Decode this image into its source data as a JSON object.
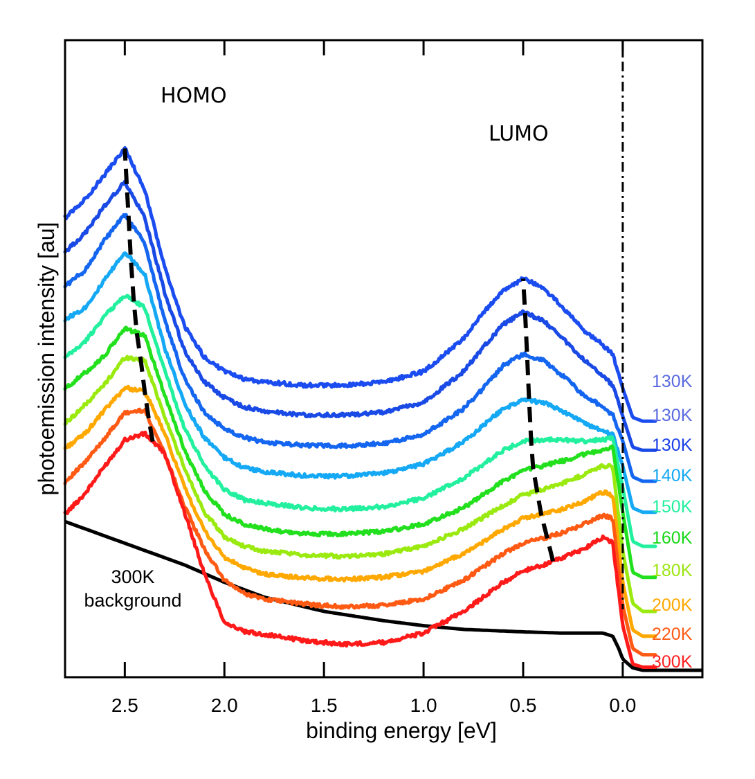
{
  "chart_data": {
    "type": "line",
    "xlabel": "binding energy [eV]",
    "ylabel": "photoemission intensity [au]",
    "x_reversed": true,
    "xlim": [
      2.8,
      -0.4
    ],
    "ylim": [
      0,
      10
    ],
    "x_ticks": [
      2.5,
      2.0,
      1.5,
      1.0,
      0.5,
      0.0
    ],
    "x_tick_labels": [
      "2.5",
      "2.0",
      "1.5",
      "1.0",
      "0.5",
      "0.0"
    ],
    "fermi_level": 0.0,
    "y_ticks_shown": false,
    "annotations": {
      "homo": "HOMO",
      "lumo": "LUMO",
      "background_line1": "300K",
      "background_line2": "background"
    },
    "x": [
      2.8,
      2.7,
      2.6,
      2.5,
      2.4,
      2.3,
      2.2,
      2.1,
      2.0,
      1.9,
      1.8,
      1.6,
      1.4,
      1.2,
      1.0,
      0.8,
      0.7,
      0.6,
      0.5,
      0.4,
      0.3,
      0.2,
      0.1,
      0.05,
      0.0,
      -0.05,
      -0.1,
      -0.15
    ],
    "series": [
      {
        "name": "300K",
        "color": "#ff1a1a",
        "offset": 0.0,
        "values": [
          2.52,
          2.85,
          3.3,
          3.72,
          3.82,
          3.5,
          2.55,
          1.55,
          0.78,
          0.62,
          0.58,
          0.48,
          0.42,
          0.45,
          0.6,
          0.95,
          1.18,
          1.42,
          1.6,
          1.7,
          1.82,
          1.95,
          2.15,
          2.05,
          0.72,
          0.1,
          0.05,
          0.05
        ]
      },
      {
        "name": "220K",
        "color": "#ff5a14",
        "offset": 0.55,
        "values": [
          3.04,
          3.35,
          3.75,
          4.15,
          4.2,
          3.5,
          2.65,
          1.95,
          1.45,
          1.24,
          1.15,
          1.07,
          1.02,
          1.05,
          1.15,
          1.45,
          1.67,
          1.88,
          2.05,
          2.13,
          2.22,
          2.35,
          2.5,
          2.45,
          1.05,
          0.35,
          0.25,
          0.25
        ]
      },
      {
        "name": "200K",
        "color": "#ffa800",
        "offset": 1.05,
        "values": [
          3.58,
          3.82,
          4.2,
          4.56,
          4.5,
          3.82,
          2.95,
          2.25,
          1.82,
          1.65,
          1.55,
          1.49,
          1.47,
          1.5,
          1.6,
          1.88,
          2.07,
          2.28,
          2.45,
          2.53,
          2.6,
          2.72,
          2.88,
          2.82,
          1.42,
          0.65,
          0.55,
          0.55
        ]
      },
      {
        "name": "180K",
        "color": "#9aea10",
        "offset": 1.55,
        "values": [
          3.98,
          4.28,
          4.62,
          5.05,
          5.0,
          4.1,
          3.25,
          2.55,
          2.15,
          2.0,
          1.92,
          1.86,
          1.84,
          1.88,
          2.0,
          2.28,
          2.47,
          2.66,
          2.83,
          2.92,
          3.02,
          3.15,
          3.3,
          3.28,
          1.92,
          1.08,
          0.95,
          0.95
        ]
      },
      {
        "name": "160K",
        "color": "#22e01e",
        "offset": 2.05,
        "values": [
          4.54,
          4.8,
          5.08,
          5.52,
          5.4,
          4.45,
          3.55,
          2.9,
          2.52,
          2.35,
          2.28,
          2.2,
          2.2,
          2.24,
          2.36,
          2.62,
          2.84,
          3.05,
          3.22,
          3.3,
          3.38,
          3.48,
          3.55,
          3.6,
          2.55,
          1.58,
          1.5,
          1.5
        ]
      },
      {
        "name": "150K",
        "color": "#22f09e",
        "offset": 2.55,
        "values": [
          5.04,
          5.3,
          5.72,
          6.05,
          5.85,
          4.85,
          3.9,
          3.3,
          2.92,
          2.75,
          2.7,
          2.62,
          2.6,
          2.64,
          2.78,
          3.1,
          3.32,
          3.55,
          3.7,
          3.72,
          3.72,
          3.7,
          3.72,
          3.75,
          2.95,
          2.08,
          2.0,
          2.0
        ]
      },
      {
        "name": "140K",
        "color": "#14a8f5",
        "offset": 3.05,
        "values": [
          5.66,
          5.85,
          6.3,
          6.75,
          6.4,
          5.2,
          4.3,
          3.75,
          3.43,
          3.27,
          3.2,
          3.14,
          3.13,
          3.18,
          3.33,
          3.68,
          3.95,
          4.22,
          4.36,
          4.32,
          4.18,
          4.0,
          3.85,
          3.8,
          3.3,
          2.62,
          2.55,
          2.55
        ]
      },
      {
        "name": "130K",
        "color": "#1466f0",
        "offset": 3.55,
        "values": [
          6.2,
          6.45,
          6.95,
          7.35,
          6.9,
          5.65,
          4.7,
          4.15,
          3.9,
          3.76,
          3.68,
          3.63,
          3.62,
          3.66,
          3.8,
          4.22,
          4.55,
          4.92,
          5.1,
          5.0,
          4.75,
          4.45,
          4.25,
          4.12,
          3.7,
          3.12,
          3.05,
          3.05
        ]
      },
      {
        "name": "130K",
        "color": "#1a4ae6",
        "offset": 4.05,
        "values": [
          6.75,
          7.05,
          7.5,
          7.88,
          7.3,
          6.1,
          5.15,
          4.65,
          4.4,
          4.25,
          4.18,
          4.12,
          4.12,
          4.16,
          4.32,
          4.82,
          5.22,
          5.58,
          5.78,
          5.65,
          5.35,
          5.02,
          4.75,
          4.6,
          4.1,
          3.6,
          3.55,
          3.55
        ]
      },
      {
        "name": "130K",
        "color": "#1a4cf0",
        "offset": 4.55,
        "values": [
          7.3,
          7.6,
          8.0,
          8.42,
          7.75,
          6.5,
          5.55,
          5.05,
          4.82,
          4.7,
          4.65,
          4.6,
          4.6,
          4.65,
          4.82,
          5.35,
          5.78,
          6.12,
          6.32,
          6.18,
          5.85,
          5.5,
          5.25,
          5.1,
          4.55,
          4.08,
          4.02,
          4.02
        ]
      }
    ],
    "series_label_colors": [
      "#ff2020",
      "#ff5a14",
      "#ffa800",
      "#9ce610",
      "#18d818",
      "#22f09e",
      "#14a8f5",
      "#1a3ee8",
      "#5a6ae0",
      "#5a6ae0"
    ],
    "background": {
      "name": "300K background",
      "color": "#000000",
      "x": [
        2.8,
        2.5,
        2.2,
        2.0,
        1.8,
        1.5,
        1.2,
        1.0,
        0.8,
        0.5,
        0.3,
        0.15,
        0.1,
        0.05,
        0.02,
        0.0,
        -0.05,
        -0.1,
        -0.15,
        -0.2,
        -0.3,
        -0.4
      ],
      "values": [
        2.4,
        2.05,
        1.7,
        1.42,
        1.18,
        0.95,
        0.8,
        0.72,
        0.66,
        0.62,
        0.6,
        0.6,
        0.6,
        0.55,
        0.35,
        0.18,
        0.04,
        0.0,
        0.0,
        0.0,
        0.0,
        0.0
      ]
    },
    "homo_peak_x": [
      2.36,
      2.38,
      2.4,
      2.42,
      2.44,
      2.455,
      2.47,
      2.48,
      2.49,
      2.5
    ],
    "lumo_peak_x": [
      0.35,
      0.38,
      0.41,
      0.43,
      0.45,
      0.46,
      0.47,
      0.48,
      0.49,
      0.5
    ]
  }
}
